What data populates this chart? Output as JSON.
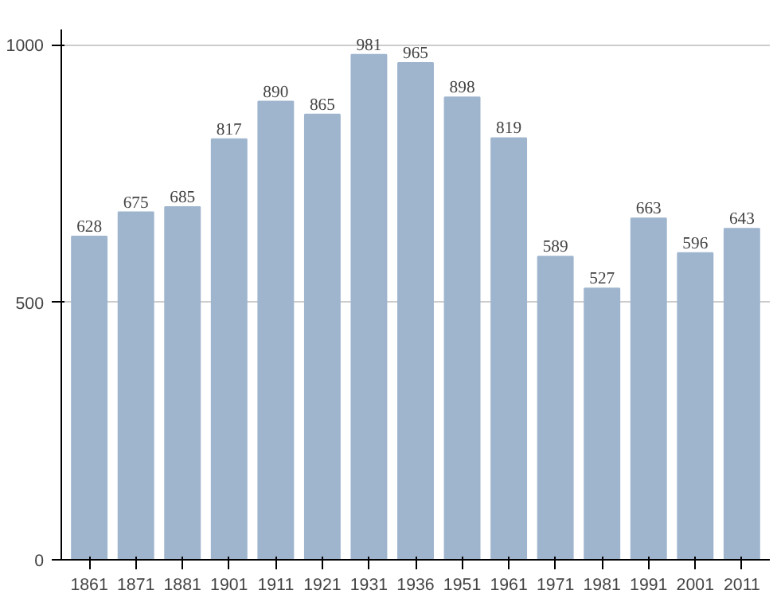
{
  "chart_data": {
    "type": "bar",
    "categories": [
      "1861",
      "1871",
      "1881",
      "1901",
      "1911",
      "1921",
      "1931",
      "1936",
      "1951",
      "1961",
      "1971",
      "1981",
      "1991",
      "2001",
      "2011"
    ],
    "values": [
      628,
      675,
      685,
      817,
      890,
      865,
      981,
      965,
      898,
      819,
      589,
      527,
      663,
      596,
      643
    ],
    "color": "#9fb5ce",
    "ylim": [
      0,
      1030
    ],
    "yticks": [
      0,
      500,
      1000
    ],
    "grid": "y",
    "data_labels": true
  }
}
